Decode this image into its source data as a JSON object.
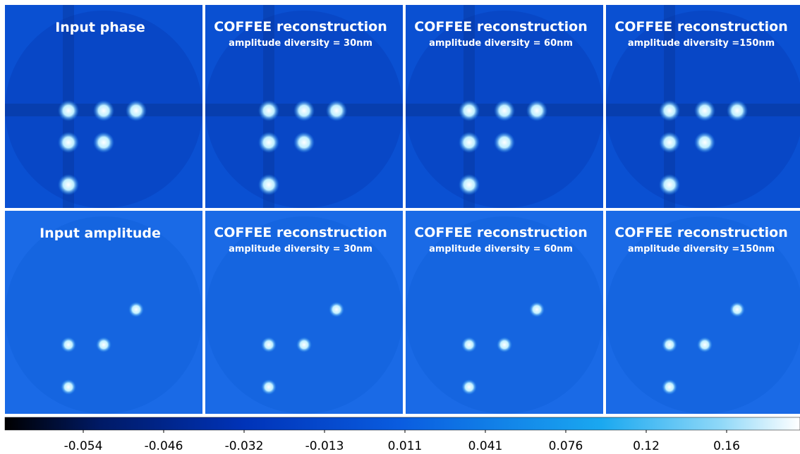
{
  "panels": [
    {
      "title": "Input phase"
    },
    {
      "title": "COFFEE reconstruction",
      "subtitle": "amplitude diversity = 30nm"
    },
    {
      "title": "COFFEE reconstruction",
      "subtitle": "amplitude diversity = 60nm"
    },
    {
      "title": "COFFEE reconstruction",
      "subtitle": "amplitude diversity =150nm"
    },
    {
      "title": "Input amplitude"
    },
    {
      "title": "COFFEE reconstruction",
      "subtitle": "amplitude diversity = 30nm"
    },
    {
      "title": "COFFEE reconstruction",
      "subtitle": "amplitude diversity = 60nm"
    },
    {
      "title": "COFFEE reconstruction",
      "subtitle": "amplitude diversity =150nm"
    }
  ],
  "colorbar": {
    "ticks": [
      -0.054,
      -0.046,
      -0.032,
      -0.013,
      0.011,
      0.041,
      0.076,
      0.12,
      0.16
    ]
  }
}
